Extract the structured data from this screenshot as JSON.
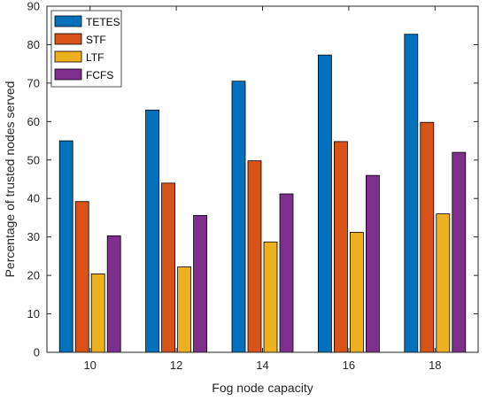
{
  "chart_data": {
    "type": "bar",
    "title": "",
    "xlabel": "Fog node capacity",
    "ylabel": "Percentage of trusted nodes served",
    "categories": [
      "10",
      "12",
      "14",
      "16",
      "18"
    ],
    "ylim": [
      0,
      90
    ],
    "yticks": [
      0,
      10,
      20,
      30,
      40,
      50,
      60,
      70,
      80,
      90
    ],
    "grid": false,
    "legend_position": "top-left",
    "series": [
      {
        "name": "TETES",
        "color": "#0072BD",
        "values": [
          55.0,
          63.0,
          70.5,
          77.3,
          82.7
        ]
      },
      {
        "name": "STF",
        "color": "#D95319",
        "values": [
          39.2,
          44.0,
          49.8,
          54.8,
          59.8
        ]
      },
      {
        "name": "LTF",
        "color": "#EDB120",
        "values": [
          20.4,
          22.2,
          28.7,
          31.2,
          36.0
        ]
      },
      {
        "name": "FCFS",
        "color": "#7E2F8E",
        "values": [
          30.3,
          35.6,
          41.2,
          46.0,
          52.0
        ]
      }
    ]
  }
}
